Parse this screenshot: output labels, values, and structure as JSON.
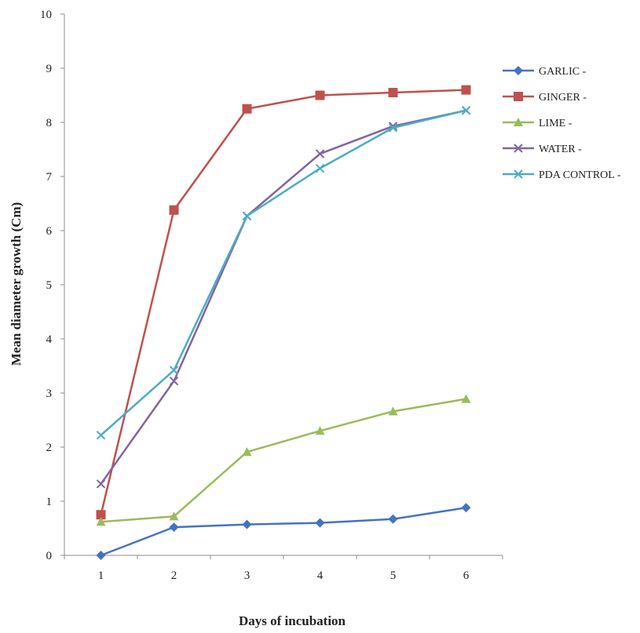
{
  "chart_data": {
    "type": "line",
    "title": "",
    "xlabel": "Days of incubation",
    "ylabel": "Mean diameter growth (Cm)",
    "x": [
      1,
      2,
      3,
      4,
      5,
      6
    ],
    "xlim": [
      0.5,
      6.5
    ],
    "ylim": [
      0,
      10
    ],
    "yticks": [
      0,
      1,
      2,
      3,
      4,
      5,
      6,
      7,
      8,
      9,
      10
    ],
    "grid": false,
    "legend_position": "right",
    "series": [
      {
        "name": "GARLIC -",
        "color": "#4472C4",
        "marker": "diamond",
        "values": [
          0.0,
          0.52,
          0.57,
          0.6,
          0.67,
          0.88
        ]
      },
      {
        "name": "GINGER -",
        "color": "#C0504D",
        "marker": "square",
        "values": [
          0.75,
          6.38,
          8.25,
          8.5,
          8.55,
          8.6
        ]
      },
      {
        "name": "LIME -",
        "color": "#9BBB59",
        "marker": "triangle",
        "values": [
          0.62,
          0.72,
          1.91,
          2.3,
          2.66,
          2.89
        ]
      },
      {
        "name": "WATER -",
        "color": "#8064A2",
        "marker": "x",
        "values": [
          1.32,
          3.22,
          6.27,
          7.42,
          7.93,
          8.22
        ]
      },
      {
        "name": "PDA CONTROL -",
        "color": "#4BACC6",
        "marker": "x",
        "values": [
          2.22,
          3.42,
          6.27,
          7.15,
          7.9,
          8.22
        ]
      }
    ]
  }
}
